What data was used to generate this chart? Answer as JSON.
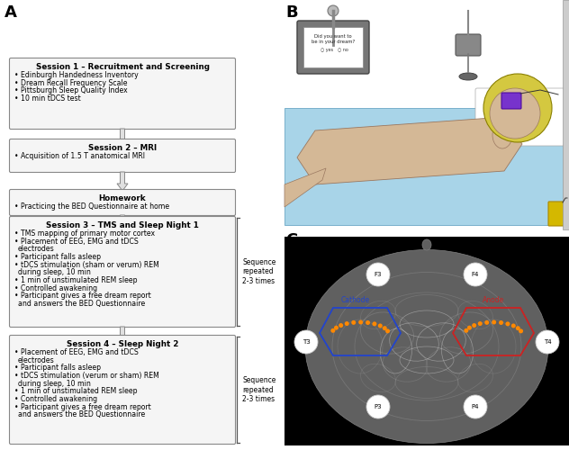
{
  "fig_width": 6.32,
  "fig_height": 5.0,
  "dpi": 100,
  "bg_color": "#ffffff",
  "panel_A_label": "A",
  "panel_B_label": "B",
  "panel_C_label": "C",
  "session1_title": "Session 1 – Recruitment and Screening",
  "session1_bullets": [
    "Edinburgh Handedness Inventory",
    "Dream Recall Frequency Scale",
    "Pittsburgh Sleep Quality Index",
    "10 min tDCS test"
  ],
  "session2_title": "Session 2 – MRI",
  "session2_bullets": [
    "Acquisition of 1.5 T anatomical MRI"
  ],
  "homework_title": "Homework",
  "homework_bullets": [
    "Practicing the BED Questionnaire at home"
  ],
  "session3_title": "Session 3 – TMS and Sleep Night 1",
  "session3_bullets": [
    "TMS mapping of primary motor cortex",
    "Placement of EEG, EMG and tDCS electrodes",
    "Participant falls asleep",
    "tDCS stimulation (sham or verum) during REM sleep, 10 min",
    "1 min of unstimulated REM sleep",
    "Controlled awakening",
    "Participant gives a free dream report and answers the BED Questionnaire"
  ],
  "session3_sequence": "Sequence\nrepeated\n2-3 times",
  "session4_title": "Session 4 – Sleep Night 2",
  "session4_bullets": [
    "Placement of EEG, EMG and tDCS electrodes",
    "Participant falls asleep",
    "tDCS stimulation (verum or sham) during REM sleep, 10 min",
    "1 min of unstimulated REM sleep",
    "Controlled awakening",
    "Participant gives a free dream report and answers the BED Questionnaire"
  ],
  "session4_sequence": "Sequence\nrepeated\n2-3 times",
  "box_facecolor": "#f5f5f5",
  "box_edgecolor": "#888888",
  "arrow_facecolor": "#e0e0e0",
  "arrow_edgecolor": "#888888"
}
